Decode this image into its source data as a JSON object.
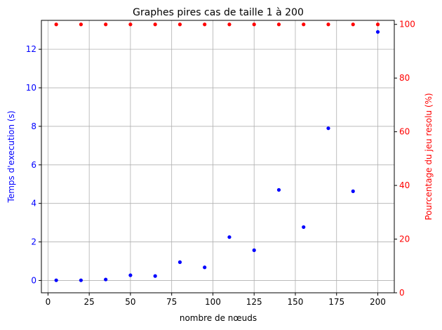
{
  "chart_data": {
    "type": "scatter",
    "title": "Graphes pires cas de taille 1 à 200",
    "xlabel": "nombre de nœuds",
    "ylabel_left": "Temps d'execution (s)",
    "ylabel_right": "Pourcentage du jeu resolu (%)",
    "xlim": [
      -4,
      210
    ],
    "ylim_left": [
      -0.64,
      13.5
    ],
    "ylim_right": [
      0,
      101.5
    ],
    "x_ticks": [
      0,
      25,
      50,
      75,
      100,
      125,
      150,
      175,
      200
    ],
    "y_ticks_left": [
      0,
      2,
      4,
      6,
      8,
      10,
      12
    ],
    "y_ticks_right": [
      0,
      20,
      40,
      60,
      80,
      100
    ],
    "grid": true,
    "colors": {
      "left_axis": "#0000ff",
      "right_axis": "#ff0000"
    },
    "series": [
      {
        "axis": "left",
        "color": "#0000ff",
        "x": [
          5,
          20,
          35,
          50,
          65,
          80,
          95,
          110,
          125,
          140,
          155,
          170,
          185,
          200
        ],
        "y": [
          0.01,
          0.01,
          0.05,
          0.27,
          0.23,
          0.95,
          0.68,
          2.25,
          1.57,
          4.7,
          2.77,
          7.9,
          4.63,
          12.9
        ]
      },
      {
        "axis": "right",
        "color": "#ff0000",
        "x": [
          5,
          20,
          35,
          50,
          65,
          80,
          95,
          110,
          125,
          140,
          155,
          170,
          185,
          200
        ],
        "y": [
          100,
          100,
          100,
          100,
          100,
          100,
          100,
          100,
          100,
          100,
          100,
          100,
          100,
          100
        ]
      }
    ]
  }
}
